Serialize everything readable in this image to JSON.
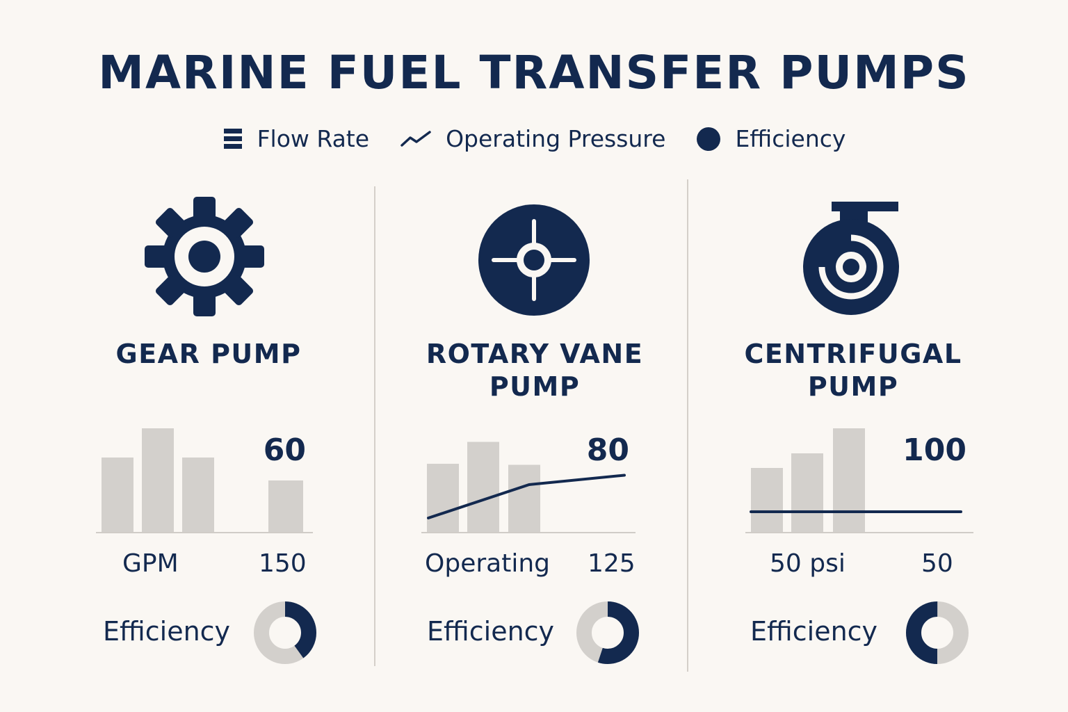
{
  "title": "MARINE FUEL TRANSFER PUMPS",
  "legend": [
    {
      "label": "Flow Rate",
      "icon": "bars-icon"
    },
    {
      "label": "Operating Pressure",
      "icon": "line-icon"
    },
    {
      "label": "Efficiency",
      "icon": "dot-icon"
    }
  ],
  "colors": {
    "primary": "#13294f",
    "bar": "#d3d0cc",
    "background": "#faf7f3",
    "divider": "#d4cfc9"
  },
  "chart_data": [
    {
      "type": "bar",
      "name": "GEAR PUMP",
      "icon": "gear-icon",
      "value_label": "60",
      "bars": [
        0.72,
        1.0,
        0.72,
        0,
        0.5
      ],
      "line": null,
      "left_label": "GPM",
      "right_label": "150",
      "efficiency_label": "Efficiency",
      "efficiency": 0.4
    },
    {
      "type": "bar",
      "name": "ROTARY VANE PUMP",
      "icon": "rotary-vane-icon",
      "value_label": "80",
      "bars": [
        0.66,
        0.87,
        0.65
      ],
      "line": [
        0.14,
        0.46,
        0.55
      ],
      "left_label": "Operating",
      "right_label": "125",
      "efficiency_label": "Efficiency",
      "efficiency": 0.55
    },
    {
      "type": "bar",
      "name": "CENTRIFUGAL PUMP",
      "icon": "centrifugal-icon",
      "value_label": "100",
      "bars": [
        0.62,
        0.76,
        1.0
      ],
      "line": [
        0.2,
        0.2
      ],
      "left_label": "50 psi",
      "right_label": "50",
      "efficiency_label": "Efficiency",
      "efficiency": 0.5
    }
  ]
}
